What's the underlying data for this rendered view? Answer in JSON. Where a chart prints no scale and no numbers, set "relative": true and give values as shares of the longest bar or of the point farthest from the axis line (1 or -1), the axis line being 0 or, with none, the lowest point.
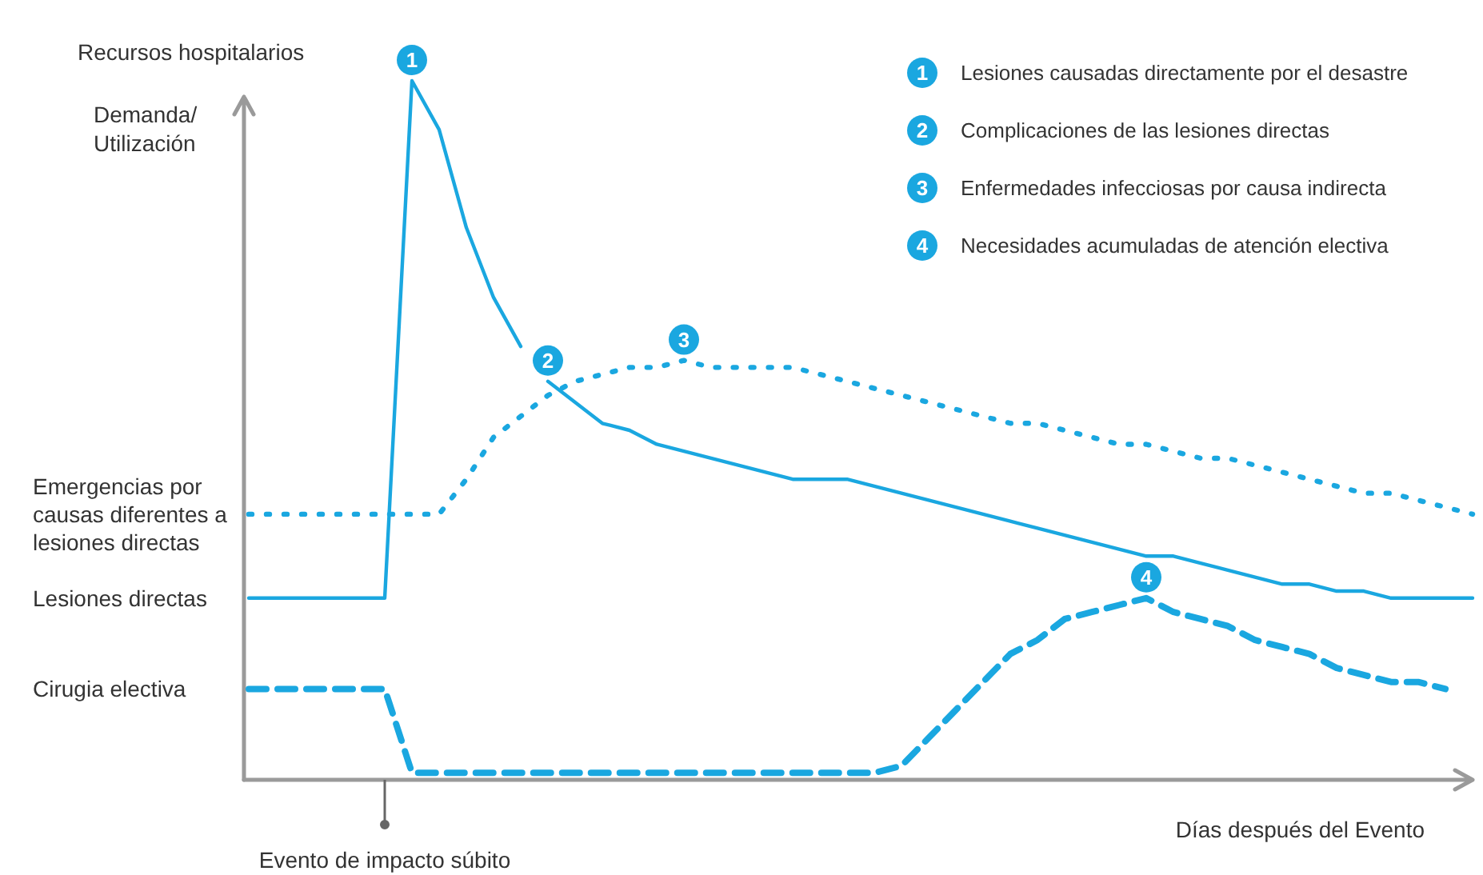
{
  "chart_data": {
    "type": "line",
    "relative": true,
    "title": "Recursos hospitalarios",
    "ylabel": "Demanda/\nUtilización",
    "xlabel": "Días después del Evento",
    "legend": "top right",
    "categories": [
      null,
      null,
      null,
      null,
      null,
      null,
      null,
      null,
      null,
      null,
      null,
      null,
      null,
      null,
      null,
      null,
      null,
      null,
      null,
      null,
      null,
      null,
      null,
      null,
      null,
      null,
      null,
      null,
      null,
      null,
      null,
      null,
      null,
      null,
      null,
      null,
      null,
      null,
      null,
      null,
      null,
      null,
      null,
      null,
      null,
      null
    ],
    "series": [
      {
        "name": "Lesiones causadas directamente por el desastre",
        "color": "#1aa7e0",
        "line_style": "solid",
        "values": [
          0.26,
          0.26,
          0.26,
          0.26,
          0.26,
          0.26,
          1.0,
          0.93,
          0.79,
          0.69,
          0.62,
          null,
          null,
          null,
          null,
          null,
          null,
          null,
          null,
          null,
          null,
          null,
          null,
          null,
          null,
          null,
          null,
          null,
          null,
          null,
          null,
          null,
          null,
          null,
          null,
          null,
          null,
          null,
          null,
          null,
          null,
          null,
          null,
          null,
          null,
          null
        ]
      },
      {
        "name": "Complicaciones de las lesiones directas",
        "color": "#1aa7e0",
        "line_style": "solid",
        "values": [
          null,
          null,
          null,
          null,
          null,
          null,
          null,
          null,
          null,
          null,
          null,
          0.57,
          0.54,
          0.51,
          0.5,
          0.48,
          0.47,
          0.46,
          0.45,
          0.44,
          0.43,
          0.43,
          0.43,
          0.42,
          0.41,
          0.4,
          0.39,
          0.38,
          0.37,
          0.36,
          0.35,
          0.34,
          0.33,
          0.32,
          0.32,
          0.31,
          0.3,
          0.29,
          0.28,
          0.28,
          0.27,
          0.27,
          0.26,
          0.26,
          0.26,
          0.26
        ]
      },
      {
        "name": "Enfermedades infecciosas por causa indirecta",
        "color": "#1aa7e0",
        "line_style": "dotted",
        "values": [
          0.38,
          0.38,
          0.38,
          0.38,
          0.38,
          0.38,
          0.38,
          0.38,
          0.43,
          0.49,
          0.52,
          0.55,
          0.57,
          0.58,
          0.59,
          0.59,
          0.6,
          0.59,
          0.59,
          0.59,
          0.59,
          0.58,
          0.57,
          0.56,
          0.55,
          0.54,
          0.53,
          0.52,
          0.51,
          0.51,
          0.5,
          0.49,
          0.48,
          0.48,
          0.47,
          0.46,
          0.46,
          0.45,
          0.44,
          0.43,
          0.42,
          0.41,
          0.41,
          0.4,
          0.39,
          0.38
        ]
      },
      {
        "name": "Necesidades acumuladas de atención electiva",
        "color": "#1aa7e0",
        "line_style": "dashed",
        "values": [
          0.13,
          0.13,
          0.13,
          0.13,
          0.13,
          0.13,
          0.01,
          0.01,
          0.01,
          0.01,
          0.01,
          0.01,
          0.01,
          0.01,
          0.01,
          0.01,
          0.01,
          0.01,
          0.01,
          0.01,
          0.01,
          0.01,
          0.01,
          0.01,
          0.02,
          0.06,
          0.1,
          0.14,
          0.18,
          0.2,
          0.23,
          0.24,
          0.25,
          0.26,
          0.24,
          0.23,
          0.22,
          0.2,
          0.19,
          0.18,
          0.16,
          0.15,
          0.14,
          0.14,
          0.13,
          null
        ]
      }
    ],
    "annotations": [
      "Emergencias por\ncausas diferentes a\nlesiones directas",
      "Lesiones directas",
      "Cirugia electiva",
      "Evento de impacto súbito",
      "1",
      "2",
      "3",
      "4"
    ]
  }
}
